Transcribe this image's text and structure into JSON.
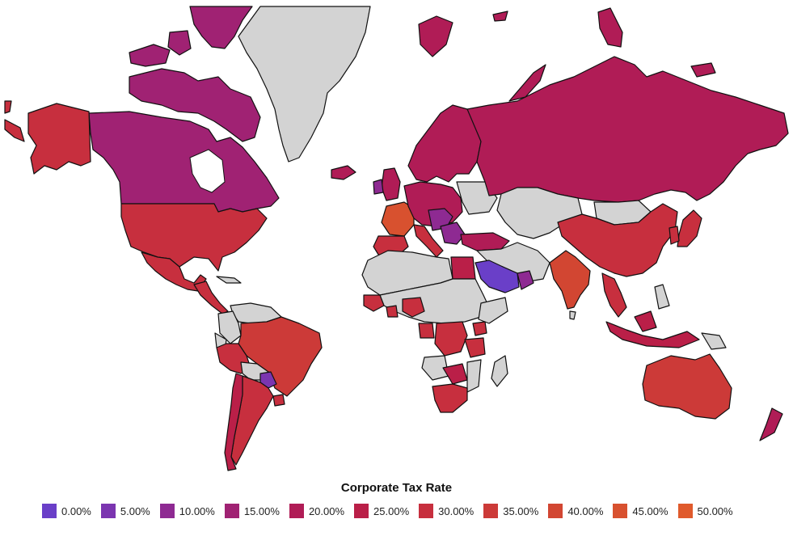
{
  "legend": {
    "title": "Corporate Tax Rate",
    "items": [
      {
        "label": "0.00%",
        "color": "#6a3fc8"
      },
      {
        "label": "5.00%",
        "color": "#7b35b0"
      },
      {
        "label": "10.00%",
        "color": "#8e2a92"
      },
      {
        "label": "15.00%",
        "color": "#a02273"
      },
      {
        "label": "20.00%",
        "color": "#b01c56"
      },
      {
        "label": "25.00%",
        "color": "#ba1f48"
      },
      {
        "label": "30.00%",
        "color": "#c72f3e"
      },
      {
        "label": "35.00%",
        "color": "#cc3a38"
      },
      {
        "label": "40.00%",
        "color": "#d24632"
      },
      {
        "label": "45.00%",
        "color": "#d8512f"
      },
      {
        "label": "50.00%",
        "color": "#e05a2c"
      }
    ]
  },
  "colors": {
    "no_data": "#d3d3d3",
    "border": "#111111",
    "background": "#ffffff"
  }
}
